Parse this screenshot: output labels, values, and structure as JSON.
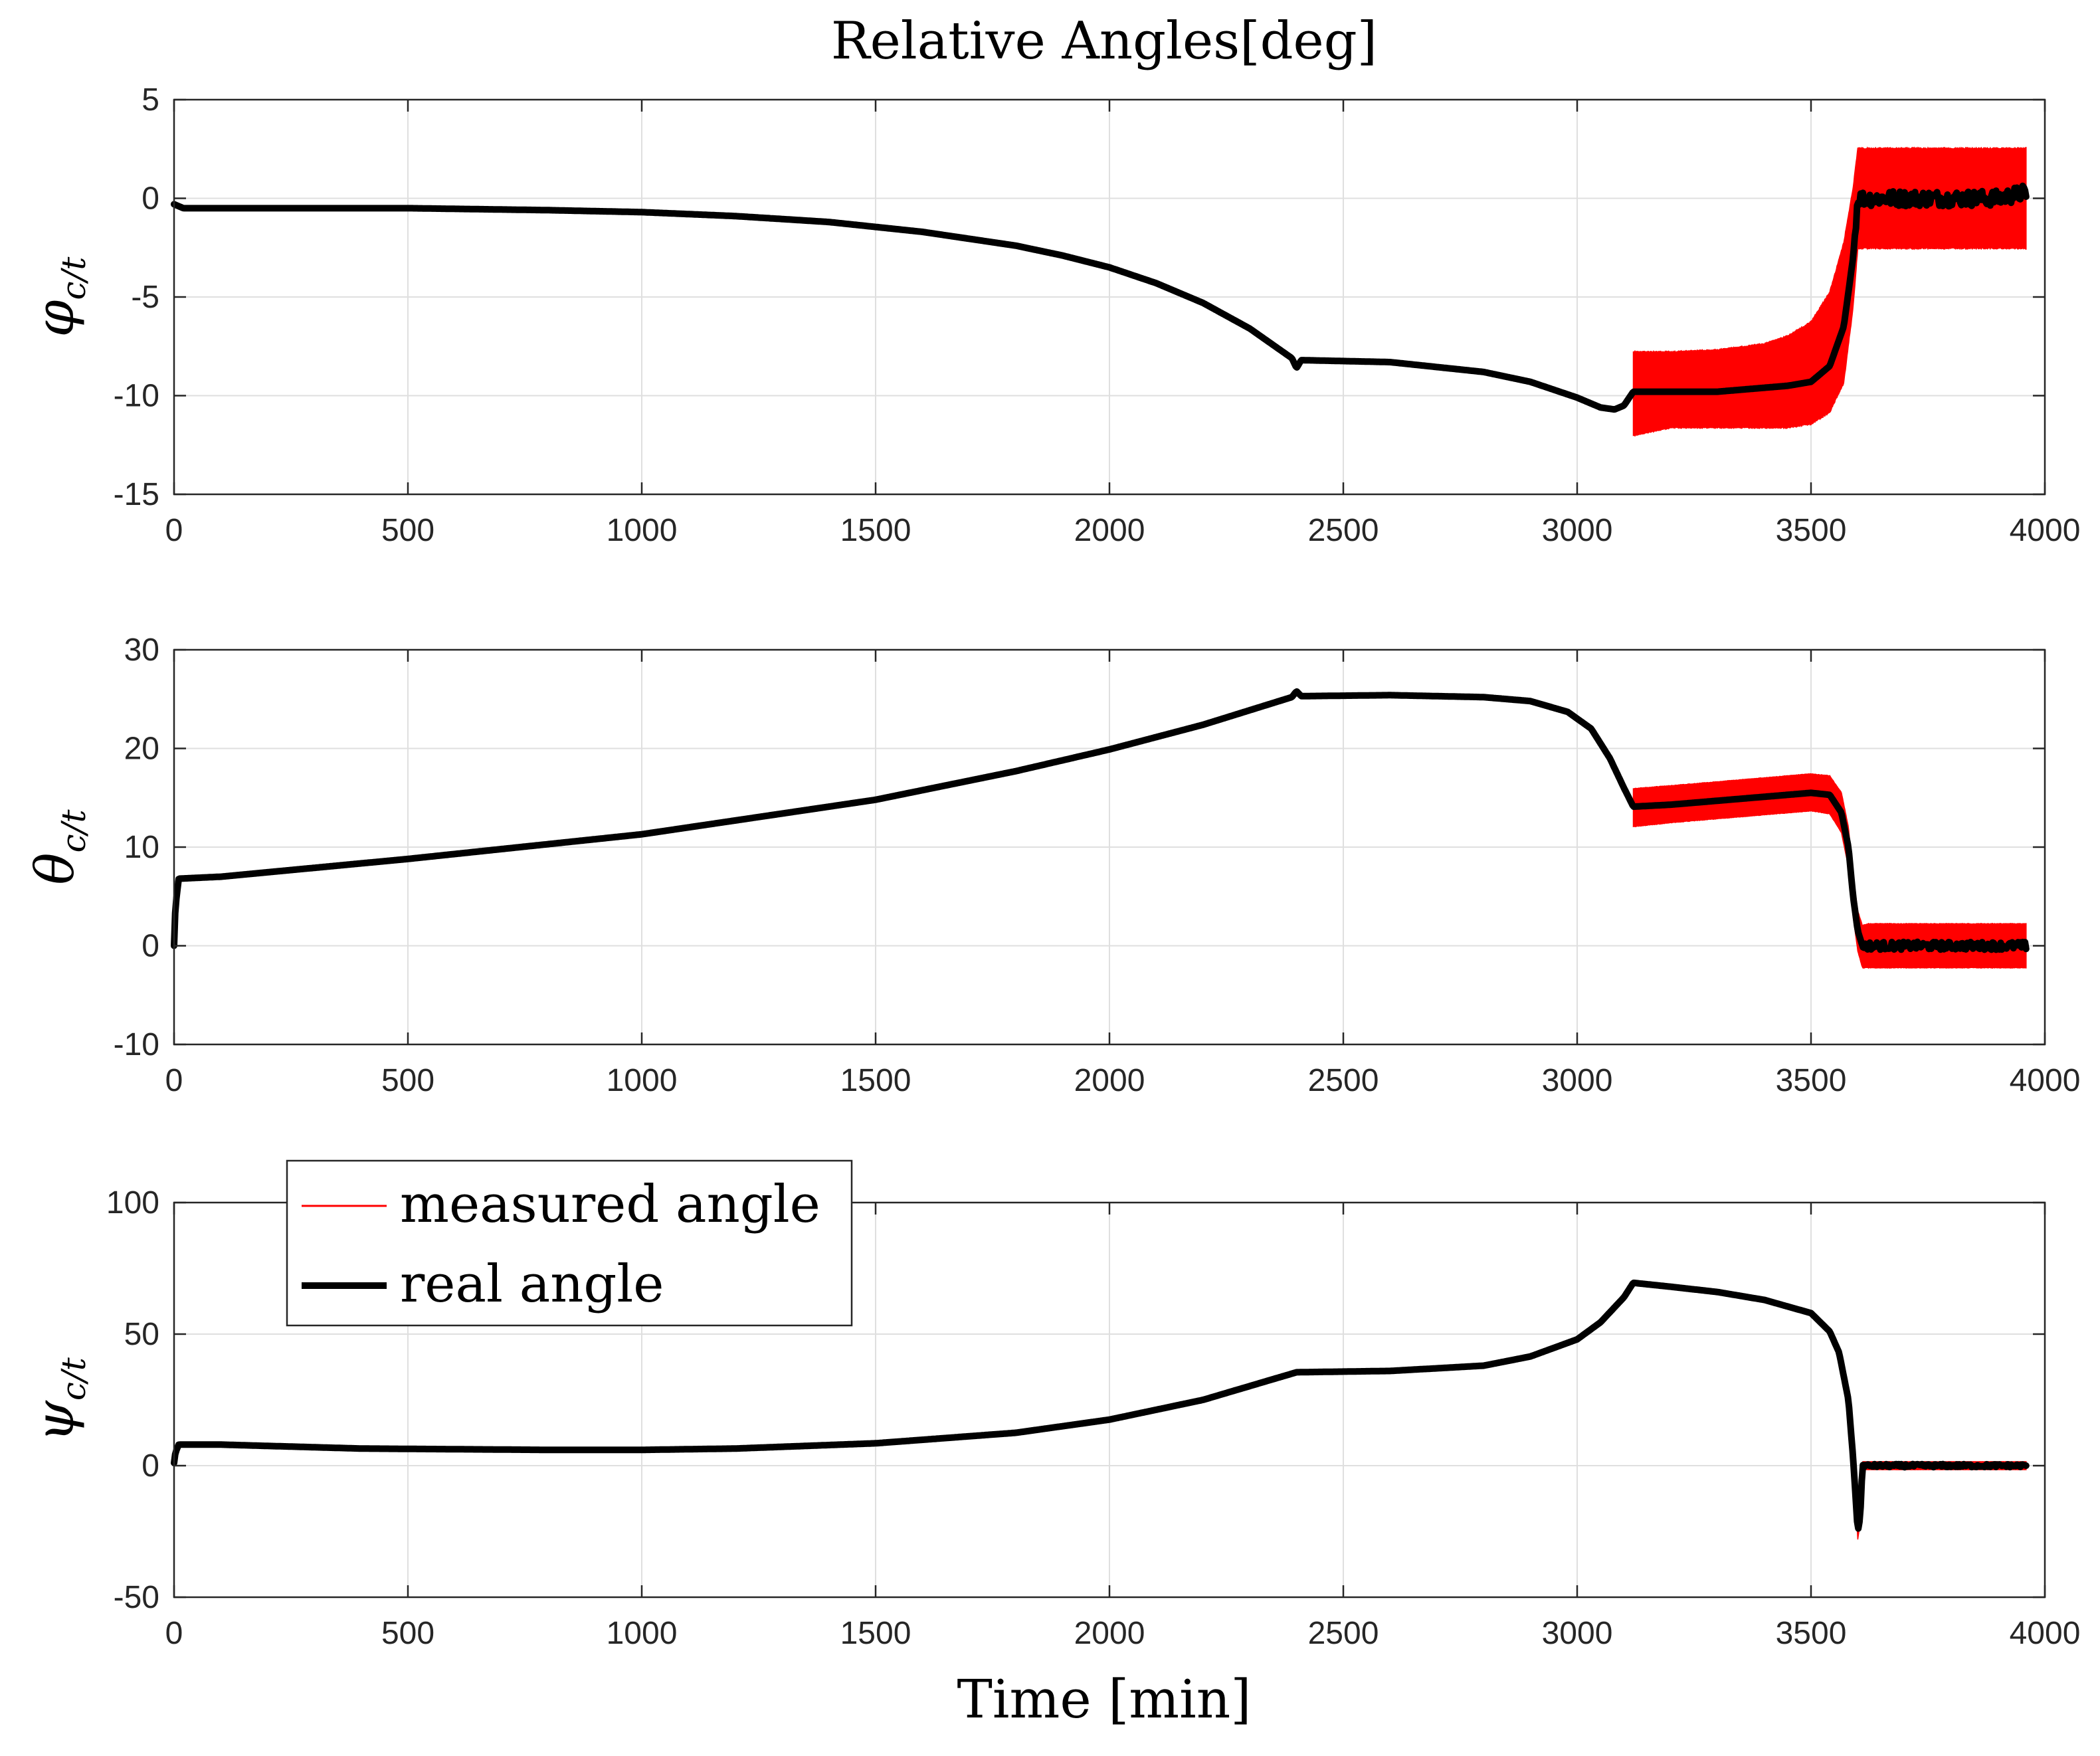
{
  "chart_data": {
    "type": "line",
    "title": "Relative Angles[deg]",
    "xlabel": "Time [min]",
    "legend": {
      "placement": "top-left of bottom panel",
      "entries": [
        "measured angle",
        "real angle"
      ]
    },
    "colors": {
      "measured": "#ff0000",
      "real": "#000000",
      "grid": "#dfdfdf",
      "axis": "#262626"
    },
    "subplots": [
      {
        "id": "phi",
        "ylabel_symbol": "φ",
        "ylabel_subscript": "c/t",
        "xlim": [
          0,
          4000
        ],
        "ylim": [
          -15,
          5
        ],
        "xticks": [
          0,
          500,
          1000,
          1500,
          2000,
          2500,
          3000,
          3500,
          4000
        ],
        "yticks": [
          -15,
          -10,
          -5,
          0,
          5
        ],
        "grid": true,
        "real": {
          "x": [
            0,
            20,
            200,
            500,
            800,
            1000,
            1200,
            1400,
            1600,
            1800,
            1900,
            2000,
            2100,
            2200,
            2300,
            2390,
            2400,
            2410,
            2600,
            2800,
            2900,
            3000,
            3050,
            3080,
            3100,
            3120,
            3200,
            3300,
            3400,
            3450,
            3500,
            3540,
            3570,
            3590,
            3600,
            3700,
            3800,
            3900,
            3960
          ],
          "y": [
            -0.3,
            -0.5,
            -0.5,
            -0.5,
            -0.6,
            -0.7,
            -0.9,
            -1.2,
            -1.7,
            -2.4,
            -2.9,
            -3.5,
            -4.3,
            -5.3,
            -6.6,
            -8.1,
            -8.6,
            -8.2,
            -8.3,
            -8.8,
            -9.3,
            -10.1,
            -10.6,
            -10.7,
            -10.5,
            -9.8,
            -9.8,
            -9.8,
            -9.6,
            -9.5,
            -9.3,
            -8.5,
            -6.5,
            -3.0,
            0.0,
            0.0,
            0.0,
            0.0,
            0.3
          ],
          "noise_from": 3590,
          "noise_amp": 0.4
        },
        "measured": {
          "x": [
            3120,
            3200,
            3300,
            3400,
            3450,
            3500,
            3540,
            3570,
            3590,
            3600,
            3700,
            3800,
            3900,
            3960
          ],
          "upper": [
            -7.8,
            -7.8,
            -7.7,
            -7.4,
            -7.0,
            -6.3,
            -4.8,
            -2.3,
            0.5,
            2.5,
            2.5,
            2.5,
            2.5,
            2.5
          ],
          "lower": [
            -12.0,
            -11.6,
            -11.6,
            -11.6,
            -11.6,
            -11.4,
            -10.8,
            -9.3,
            -5.5,
            -2.5,
            -2.5,
            -2.5,
            -2.5,
            -2.5
          ]
        }
      },
      {
        "id": "theta",
        "ylabel_symbol": "θ",
        "ylabel_subscript": "c/t",
        "xlim": [
          0,
          4000
        ],
        "ylim": [
          -10,
          30
        ],
        "xticks": [
          0,
          500,
          1000,
          1500,
          2000,
          2500,
          3000,
          3500,
          4000
        ],
        "yticks": [
          -10,
          0,
          10,
          20,
          30
        ],
        "grid": true,
        "real": {
          "x": [
            0,
            3,
            10,
            100,
            500,
            1000,
            1500,
            1800,
            2000,
            2200,
            2390,
            2400,
            2410,
            2600,
            2800,
            2900,
            2980,
            3030,
            3070,
            3100,
            3120,
            3200,
            3300,
            3400,
            3500,
            3540,
            3565,
            3580,
            3590,
            3600,
            3610,
            3700,
            3800,
            3900,
            3960
          ],
          "y": [
            0,
            4,
            6.8,
            7.0,
            8.8,
            11.3,
            14.8,
            17.7,
            19.9,
            22.4,
            25.2,
            25.8,
            25.3,
            25.4,
            25.2,
            24.8,
            23.7,
            22.0,
            19.0,
            16.0,
            14.1,
            14.3,
            14.7,
            15.1,
            15.5,
            15.3,
            13.5,
            10.0,
            5.0,
            1.5,
            0.0,
            0.0,
            0.0,
            0.0,
            0.0
          ],
          "noise_from": 3610,
          "noise_amp": 0.4
        },
        "measured": {
          "x": [
            3120,
            3200,
            3300,
            3400,
            3500,
            3540,
            3565,
            3580,
            3590,
            3600,
            3610,
            3620,
            3700,
            3800,
            3900,
            3960
          ],
          "upper": [
            15.9,
            16.2,
            16.6,
            17.0,
            17.4,
            17.2,
            15.5,
            12.0,
            7.0,
            3.5,
            2.0,
            2.2,
            2.2,
            2.2,
            2.2,
            2.2
          ],
          "lower": [
            12.1,
            12.5,
            12.9,
            13.3,
            13.7,
            13.4,
            11.5,
            8.0,
            3.0,
            -0.5,
            -2.2,
            -2.2,
            -2.2,
            -2.2,
            -2.2,
            -2.2
          ]
        }
      },
      {
        "id": "psi",
        "ylabel_symbol": "ψ",
        "ylabel_subscript": "c/t",
        "xlim": [
          0,
          4000
        ],
        "ylim": [
          -50,
          100
        ],
        "xticks": [
          0,
          500,
          1000,
          1500,
          2000,
          2500,
          3000,
          3500,
          4000
        ],
        "yticks": [
          -50,
          0,
          50,
          100
        ],
        "grid": true,
        "real": {
          "x": [
            0,
            3,
            10,
            100,
            400,
            800,
            1000,
            1200,
            1500,
            1800,
            2000,
            2200,
            2400,
            2600,
            2800,
            2900,
            3000,
            3050,
            3100,
            3120,
            3200,
            3300,
            3400,
            3500,
            3540,
            3560,
            3580,
            3590,
            3600,
            3605,
            3610,
            3700,
            3800,
            3900,
            3960
          ],
          "y": [
            1,
            5,
            8,
            8,
            6.5,
            6,
            6,
            6.5,
            8.5,
            12.5,
            17.5,
            25,
            35.5,
            36,
            38,
            41.5,
            48,
            54.5,
            64,
            69.5,
            68,
            66,
            63,
            58,
            51,
            43,
            25,
            3,
            -25,
            -20,
            0,
            0,
            0,
            0,
            0
          ],
          "noise_from": 3610,
          "noise_amp": 0.6
        },
        "measured": {
          "x": [
            3120,
            3200,
            3300,
            3400,
            3500,
            3540,
            3560,
            3580,
            3590,
            3600,
            3605,
            3610,
            3700,
            3800,
            3900,
            3960
          ],
          "upper": [
            70.5,
            69,
            67,
            64,
            59,
            52,
            44,
            26,
            4,
            -23,
            -18,
            1.5,
            1.5,
            1.5,
            1.5,
            1.5
          ],
          "lower": [
            68.5,
            67,
            65,
            62,
            57,
            50,
            42,
            24,
            2,
            -28,
            -22,
            -1.5,
            -1.5,
            -1.5,
            -1.5,
            -1.5
          ]
        }
      }
    ]
  }
}
